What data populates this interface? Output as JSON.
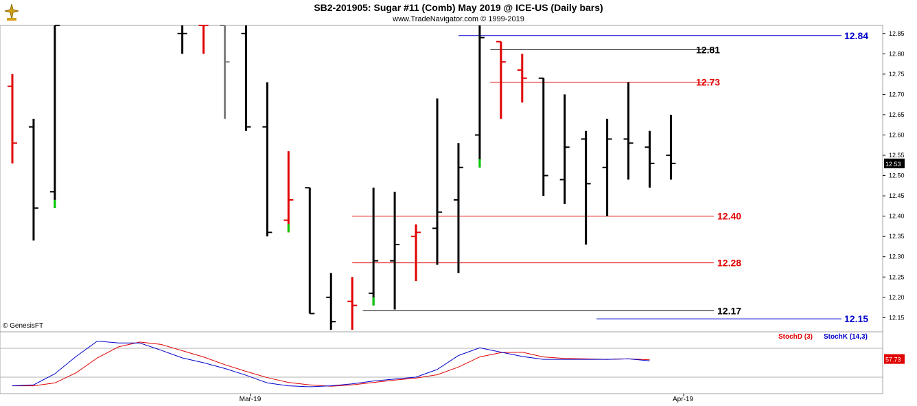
{
  "header": {
    "title": "SB2-201905:  Sugar #11 (Comb) May 2019 @ ICE-US  (Daily bars)",
    "subtitle": "www.TradeNavigator.com © 1999-2019"
  },
  "copyright": "© GenesisFT",
  "logo_icon": "trade-navigator-logo-icon",
  "chart_data": [
    {
      "type": "ohlc",
      "ylim": [
        12.115,
        12.87
      ],
      "y_ticks": [
        "12.85",
        "12.80",
        "12.75",
        "12.70",
        "12.65",
        "12.60",
        "12.55",
        "12.50",
        "12.45",
        "12.40",
        "12.35",
        "12.30",
        "12.25",
        "12.20",
        "12.15"
      ],
      "last_price": "12.53",
      "x_labels": [
        "Mar-19",
        "Apr-19"
      ],
      "bars": [
        {
          "o": 12.72,
          "h": 12.75,
          "l": 12.53,
          "c": 12.58,
          "color": "#e00000"
        },
        {
          "o": 12.62,
          "h": 12.64,
          "l": 12.34,
          "c": 12.42,
          "color": "#000000"
        },
        {
          "o": 12.46,
          "h": 12.87,
          "l": 12.42,
          "c": 12.87,
          "color": "#000000",
          "tail": "#00cc00"
        },
        {
          "o": null,
          "h": null,
          "l": null,
          "c": null
        },
        {
          "o": null,
          "h": null,
          "l": null,
          "c": null
        },
        {
          "o": null,
          "h": null,
          "l": null,
          "c": null
        },
        {
          "o": null,
          "h": null,
          "l": null,
          "c": null
        },
        {
          "o": null,
          "h": null,
          "l": null,
          "c": null
        },
        {
          "o": 12.85,
          "h": 12.87,
          "l": 12.8,
          "c": 12.85,
          "color": "#000000"
        },
        {
          "o": 12.87,
          "h": 12.87,
          "l": 12.8,
          "c": 12.87,
          "color": "#e00000"
        },
        {
          "o": 12.87,
          "h": 12.87,
          "l": 12.64,
          "c": 12.78,
          "color": "#808080"
        },
        {
          "o": 12.85,
          "h": 12.87,
          "l": 12.61,
          "c": 12.62,
          "color": "#000000"
        },
        {
          "o": 12.62,
          "h": 12.73,
          "l": 12.35,
          "c": 12.36,
          "color": "#000000"
        },
        {
          "o": 12.39,
          "h": 12.56,
          "l": 12.36,
          "c": 12.44,
          "color": "#e00000",
          "tail": "#00cc00"
        },
        {
          "o": 12.47,
          "h": 12.47,
          "l": 12.16,
          "c": 12.16,
          "color": "#000000"
        },
        {
          "o": 12.2,
          "h": 12.26,
          "l": 12.12,
          "c": 12.14,
          "color": "#000000"
        },
        {
          "o": 12.19,
          "h": 12.25,
          "l": 12.12,
          "c": 12.18,
          "color": "#e00000"
        },
        {
          "o": 12.21,
          "h": 12.47,
          "l": 12.18,
          "c": 12.29,
          "color": "#000000",
          "tail": "#00cc00"
        },
        {
          "o": 12.29,
          "h": 12.46,
          "l": 12.17,
          "c": 12.33,
          "color": "#000000"
        },
        {
          "o": 12.35,
          "h": 12.38,
          "l": 12.24,
          "c": 12.36,
          "color": "#e00000"
        },
        {
          "o": 12.37,
          "h": 12.69,
          "l": 12.28,
          "c": 12.41,
          "color": "#000000"
        },
        {
          "o": 12.44,
          "h": 12.58,
          "l": 12.26,
          "c": 12.52,
          "color": "#000000"
        },
        {
          "o": 12.6,
          "h": 12.87,
          "l": 12.52,
          "c": 12.84,
          "color": "#000000",
          "tail": "#00cc00"
        },
        {
          "o": 12.83,
          "h": 12.83,
          "l": 12.64,
          "c": 12.78,
          "color": "#e00000"
        },
        {
          "o": 12.76,
          "h": 12.8,
          "l": 12.68,
          "c": 12.74,
          "color": "#e00000"
        },
        {
          "o": 12.74,
          "h": 12.74,
          "l": 12.45,
          "c": 12.5,
          "color": "#000000"
        },
        {
          "o": 12.49,
          "h": 12.7,
          "l": 12.43,
          "c": 12.57,
          "color": "#000000"
        },
        {
          "o": 12.59,
          "h": 12.61,
          "l": 12.33,
          "c": 12.48,
          "color": "#000000"
        },
        {
          "o": 12.52,
          "h": 12.64,
          "l": 12.4,
          "c": 12.59,
          "color": "#000000"
        },
        {
          "o": 12.59,
          "h": 12.73,
          "l": 12.49,
          "c": 12.58,
          "color": "#000000"
        },
        {
          "o": 12.57,
          "h": 12.61,
          "l": 12.47,
          "c": 12.53,
          "color": "#000000"
        },
        {
          "o": 12.55,
          "h": 12.65,
          "l": 12.49,
          "c": 12.53,
          "color": "#000000"
        }
      ],
      "levels": [
        {
          "label": "12.84",
          "value": 12.845,
          "color": "#0000cc",
          "from": 21,
          "to": "right"
        },
        {
          "label": "12.81",
          "value": 12.81,
          "color": "#000000",
          "from": 22.5,
          "to": "mid"
        },
        {
          "label": "12.73",
          "value": 12.73,
          "color": "#e00000",
          "from": 22.5,
          "to": "mid"
        },
        {
          "label": "12.40",
          "value": 12.4,
          "color": "#e00000",
          "from": 16,
          "to": "mid"
        },
        {
          "label": "12.28",
          "value": 12.285,
          "color": "#e00000",
          "from": 16,
          "to": "mid"
        },
        {
          "label": "12.17",
          "value": 12.167,
          "color": "#000000",
          "from": 16.5,
          "to": "mid"
        },
        {
          "label": "12.15",
          "value": 12.147,
          "color": "#0000cc",
          "from": 27.5,
          "to": "right"
        }
      ]
    },
    {
      "type": "line",
      "ylim": [
        0,
        100
      ],
      "legend": [
        {
          "name": "StochD (3)",
          "color": "#e00000"
        },
        {
          "name": "StochK (14,3)",
          "color": "#0000cc"
        }
      ],
      "last_value": "57.73",
      "series": [
        {
          "name": "StochD (3)",
          "color": "#e00000",
          "points": [
            [
              0,
              2
            ],
            [
              1,
              2
            ],
            [
              2,
              8
            ],
            [
              3,
              29
            ],
            [
              4,
              60
            ],
            [
              5,
              83
            ],
            [
              6,
              93
            ],
            [
              7,
              88
            ],
            [
              8,
              75
            ],
            [
              9,
              62
            ],
            [
              10,
              46
            ],
            [
              11,
              32
            ],
            [
              12,
              19
            ],
            [
              13,
              9
            ],
            [
              14,
              4
            ],
            [
              15,
              1
            ],
            [
              16,
              4
            ],
            [
              17,
              9
            ],
            [
              18,
              14
            ],
            [
              19,
              18
            ],
            [
              20,
              25
            ],
            [
              21,
              41
            ],
            [
              22,
              62
            ],
            [
              23,
              71
            ],
            [
              24,
              72
            ],
            [
              25,
              62
            ],
            [
              26,
              59
            ],
            [
              27,
              58
            ],
            [
              28,
              57
            ],
            [
              29,
              58
            ],
            [
              30,
              56
            ]
          ]
        },
        {
          "name": "StochK (14,3)",
          "color": "#0000cc",
          "points": [
            [
              0,
              2
            ],
            [
              1,
              4
            ],
            [
              2,
              27
            ],
            [
              3,
              63
            ],
            [
              4,
              95
            ],
            [
              5,
              91
            ],
            [
              6,
              91
            ],
            [
              7,
              76
            ],
            [
              8,
              60
            ],
            [
              9,
              50
            ],
            [
              10,
              38
            ],
            [
              11,
              24
            ],
            [
              12,
              8
            ],
            [
              13,
              2
            ],
            [
              14,
              0
            ],
            [
              15,
              2
            ],
            [
              16,
              6
            ],
            [
              17,
              12
            ],
            [
              18,
              16
            ],
            [
              19,
              20
            ],
            [
              20,
              36
            ],
            [
              21,
              65
            ],
            [
              22,
              81
            ],
            [
              23,
              72
            ],
            [
              24,
              63
            ],
            [
              25,
              57
            ],
            [
              26,
              57
            ],
            [
              27,
              57
            ],
            [
              28,
              57
            ],
            [
              29,
              58
            ],
            [
              30,
              54
            ]
          ]
        }
      ]
    }
  ]
}
